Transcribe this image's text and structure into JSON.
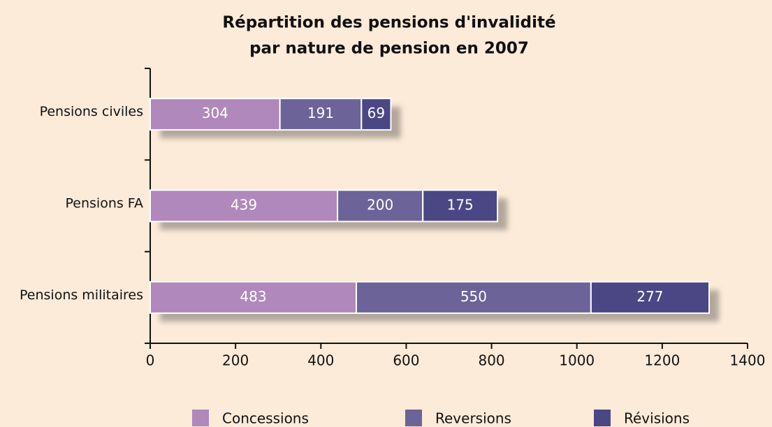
{
  "chart_data": {
    "type": "stacked-barh",
    "title": [
      "Répartition des pensions d'invalidité",
      "par nature de pension en 2007"
    ],
    "categories": [
      "Pensions civiles",
      "Pensions FA",
      "Pensions militaires"
    ],
    "series": [
      {
        "name": "Concessions",
        "color": "#b088bb",
        "values": [
          304,
          439,
          483
        ]
      },
      {
        "name": "Reversions",
        "color": "#6c6399",
        "values": [
          191,
          200,
          550
        ]
      },
      {
        "name": "Révisions",
        "color": "#4a4784",
        "values": [
          69,
          175,
          277
        ]
      }
    ],
    "xlim": [
      0,
      1400
    ],
    "xticks": [
      0,
      200,
      400,
      600,
      800,
      1000,
      1200,
      1400
    ],
    "legend": "bottom"
  }
}
